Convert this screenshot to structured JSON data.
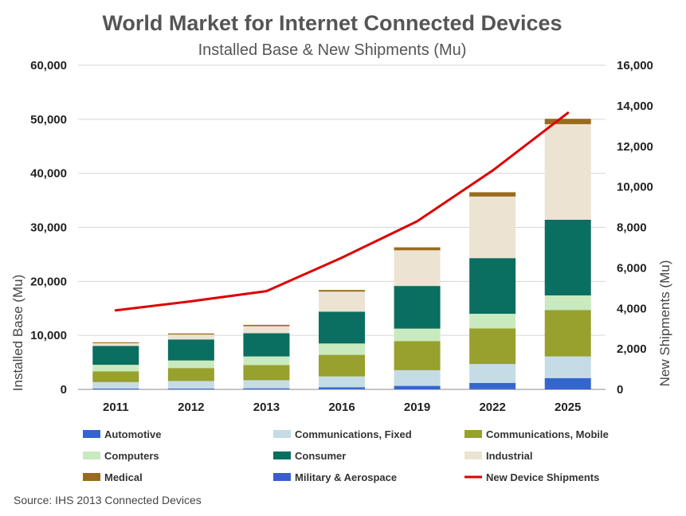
{
  "chart_data": {
    "type": "bar",
    "stacked": true,
    "title": "World Market for Internet Connected Devices",
    "subtitle": "Installed Base & New Shipments (Mu)",
    "categories": [
      "2011",
      "2012",
      "2013",
      "2016",
      "2019",
      "2022",
      "2025"
    ],
    "ylabel": "Installed Base (Mu)",
    "y2label": "New Shipments (Mu)",
    "ylim": [
      0,
      60000
    ],
    "y2lim": [
      0,
      16000
    ],
    "yticks": [
      "0",
      "10,000",
      "20,000",
      "30,000",
      "40,000",
      "50,000",
      "60,000"
    ],
    "y2ticks": [
      "0",
      "2,000",
      "4,000",
      "6,000",
      "8,000",
      "10,000",
      "12,000",
      "14,000",
      "16,000"
    ],
    "grid": true,
    "series": [
      {
        "name": "Military & Aerospace",
        "color": "#3a5fcd",
        "values": [
          50,
          50,
          50,
          100,
          150,
          200,
          300
        ]
      },
      {
        "name": "Automotive",
        "color": "#3366cc",
        "values": [
          100,
          100,
          150,
          300,
          500,
          1000,
          1800
        ]
      },
      {
        "name": "Communications, Fixed",
        "color": "#c5dce6",
        "values": [
          1200,
          1400,
          1500,
          2000,
          2900,
          3500,
          4000
        ]
      },
      {
        "name": "Communications, Mobile",
        "color": "#98a02e",
        "values": [
          2000,
          2400,
          2800,
          4000,
          5400,
          6600,
          8600
        ]
      },
      {
        "name": "Computers",
        "color": "#c9eabf",
        "values": [
          1200,
          1400,
          1600,
          2100,
          2300,
          2700,
          2700
        ]
      },
      {
        "name": "Consumer",
        "color": "#0a6e61",
        "values": [
          3500,
          3900,
          4300,
          5900,
          7900,
          10300,
          14000
        ]
      },
      {
        "name": "Industrial",
        "color": "#ede3d2",
        "values": [
          500,
          900,
          1300,
          3700,
          6600,
          11400,
          17700
        ]
      },
      {
        "name": "Medical",
        "color": "#9a6b1c",
        "values": [
          150,
          200,
          250,
          300,
          550,
          800,
          1000
        ]
      }
    ],
    "line_series": {
      "name": "New Device Shipments",
      "color": "#dd0000",
      "axis": "right",
      "values": [
        3900,
        4350,
        4850,
        6500,
        8300,
        10800,
        13650
      ]
    },
    "legend_position": "bottom",
    "legend": [
      {
        "label": "Automotive",
        "color": "#3366cc",
        "kind": "box"
      },
      {
        "label": "Communications, Fixed",
        "color": "#c5dce6",
        "kind": "box"
      },
      {
        "label": "Communications, Mobile",
        "color": "#98a02e",
        "kind": "box"
      },
      {
        "label": "Computers",
        "color": "#c9eabf",
        "kind": "box"
      },
      {
        "label": "Consumer",
        "color": "#0a6e61",
        "kind": "box"
      },
      {
        "label": "Industrial",
        "color": "#ede3d2",
        "kind": "box"
      },
      {
        "label": "Medical",
        "color": "#9a6b1c",
        "kind": "box"
      },
      {
        "label": "Military & Aerospace",
        "color": "#3a5fcd",
        "kind": "box"
      },
      {
        "label": "New Device Shipments",
        "color": "#dd0000",
        "kind": "line"
      }
    ],
    "source": "Source: IHS 2013 Connected Devices"
  }
}
